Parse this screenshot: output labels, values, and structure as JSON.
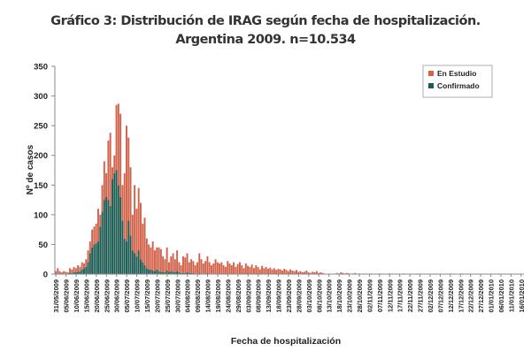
{
  "chart_data": {
    "type": "bar",
    "stacked": true,
    "title": "Gráfico 3: Distribución de IRAG según fecha de hospitalización.",
    "subtitle": "Argentina 2009. n=10.534",
    "xlabel": "Fecha de hospitalización",
    "ylabel": "Nº de casos",
    "ylim": [
      0,
      350
    ],
    "yticks": [
      0,
      50,
      100,
      150,
      200,
      250,
      300,
      350
    ],
    "x_start": "31/05/2009",
    "x_end": "16/01/2010",
    "x_interval": "daily",
    "xtick_labels": [
      "31/05/2009",
      "05/06/2009",
      "10/06/2009",
      "15/06/2009",
      "20/06/2009",
      "25/06/2009",
      "30/06/2009",
      "05/07/2009",
      "10/07/2009",
      "15/07/2009",
      "20/07/2009",
      "25/07/2009",
      "30/07/2009",
      "04/08/2009",
      "09/08/2009",
      "14/08/2009",
      "19/08/2009",
      "24/08/2009",
      "29/08/2009",
      "03/09/2009",
      "08/09/2009",
      "13/09/2009",
      "18/09/2009",
      "23/09/2009",
      "28/09/2009",
      "03/10/2009",
      "08/10/2009",
      "13/10/2009",
      "18/10/2009",
      "23/10/2009",
      "28/10/2009",
      "02/11/2009",
      "07/11/2009",
      "12/11/2009",
      "17/11/2009",
      "22/11/2009",
      "27/11/2009",
      "02/12/2009",
      "07/12/2009",
      "12/12/2009",
      "17/12/2009",
      "22/12/2009",
      "27/12/2009",
      "01/01/2010",
      "06/01/2010",
      "11/01/2010",
      "16/01/2010"
    ],
    "grid": false,
    "legend_placement": "top-right",
    "series": [
      {
        "name": "Confirmado",
        "color": "#1d5c52",
        "values": [
          0,
          1,
          0,
          0,
          1,
          1,
          1,
          2,
          2,
          3,
          3,
          4,
          5,
          8,
          10,
          12,
          20,
          35,
          45,
          50,
          52,
          55,
          80,
          105,
          125,
          130,
          125,
          115,
          160,
          170,
          175,
          150,
          130,
          90,
          60,
          55,
          90,
          65,
          40,
          35,
          30,
          40,
          25,
          20,
          15,
          10,
          8,
          8,
          6,
          5,
          8,
          5,
          4,
          3,
          3,
          6,
          3,
          5,
          4,
          3,
          5,
          3,
          2,
          2,
          2,
          3,
          2,
          2,
          2,
          1,
          1,
          2,
          1,
          1,
          1,
          2,
          1,
          1,
          1,
          1,
          1,
          0,
          0,
          0,
          0,
          0,
          0,
          0,
          0,
          0,
          0,
          0,
          0,
          0,
          0,
          0,
          0,
          0,
          0,
          0,
          0,
          0,
          0,
          0,
          0,
          0,
          0,
          0,
          0,
          0,
          0,
          0,
          0,
          0,
          0,
          0,
          0,
          0,
          0,
          0,
          0,
          0,
          0,
          0,
          0,
          0,
          0,
          0,
          0,
          0,
          0,
          0,
          0,
          0,
          0,
          0,
          0,
          0,
          0,
          0,
          0,
          0,
          0,
          0,
          0,
          0,
          0,
          0,
          0,
          0,
          0,
          0,
          0,
          0,
          0,
          0,
          0,
          0,
          0,
          0,
          0,
          0,
          0,
          0,
          0,
          0,
          0,
          0,
          0,
          0,
          0,
          0,
          0,
          0,
          0,
          0,
          0,
          0,
          0,
          0,
          0,
          0,
          0,
          0,
          0,
          0,
          0,
          0,
          0,
          0,
          0,
          0,
          0,
          0,
          0,
          0,
          0,
          0,
          0,
          0,
          0,
          0,
          0,
          0,
          0,
          0,
          0,
          0,
          0,
          0,
          0,
          0,
          0,
          0,
          0,
          0,
          0,
          0,
          0,
          0,
          0,
          0,
          0,
          0,
          0,
          0,
          0,
          0,
          0,
          0,
          0
        ]
      },
      {
        "name": "En Estudio",
        "color": "#d2634b",
        "values": [
          5,
          9,
          5,
          3,
          4,
          3,
          2,
          8,
          6,
          9,
          7,
          11,
          7,
          12,
          8,
          13,
          20,
          20,
          30,
          30,
          33,
          55,
          20,
          45,
          65,
          40,
          100,
          123,
          20,
          30,
          110,
          137,
          140,
          60,
          110,
          195,
          140,
          115,
          60,
          115,
          80,
          105,
          95,
          65,
          80,
          50,
          42,
          37,
          49,
          35,
          37,
          40,
          38,
          27,
          22,
          39,
          17,
          25,
          31,
          22,
          35,
          17,
          13,
          28,
          26,
          32,
          18,
          23,
          20,
          14,
          19,
          33,
          24,
          17,
          21,
          28,
          19,
          14,
          17,
          24,
          19,
          18,
          20,
          15,
          12,
          22,
          18,
          15,
          20,
          12,
          17,
          20,
          15,
          10,
          18,
          14,
          12,
          16,
          10,
          15,
          12,
          8,
          14,
          10,
          12,
          9,
          11,
          8,
          10,
          7,
          9,
          8,
          6,
          9,
          7,
          5,
          8,
          6,
          5,
          7,
          4,
          5,
          3,
          4,
          6,
          3,
          2,
          4,
          3,
          5,
          2,
          3,
          2,
          0,
          0,
          0,
          0,
          0,
          0,
          2,
          1,
          3,
          2,
          1,
          2,
          1,
          0,
          1,
          2,
          0,
          1,
          0,
          0,
          1,
          0,
          0,
          1,
          0,
          0,
          0,
          1,
          0,
          0,
          0,
          0,
          1,
          0,
          0,
          0,
          0,
          0,
          0,
          1,
          0,
          0,
          0,
          0,
          0,
          0,
          1,
          0,
          0,
          0,
          0,
          0,
          0,
          0,
          0,
          1,
          0,
          0,
          0,
          0,
          0,
          0,
          0,
          0,
          0,
          0,
          0,
          0,
          1,
          0,
          0,
          0,
          0,
          0,
          0,
          0,
          0,
          0,
          0,
          0,
          0,
          0,
          0,
          0,
          0,
          0,
          0,
          0,
          0,
          0,
          0,
          0,
          0,
          0,
          0,
          0,
          0,
          0
        ]
      }
    ]
  }
}
